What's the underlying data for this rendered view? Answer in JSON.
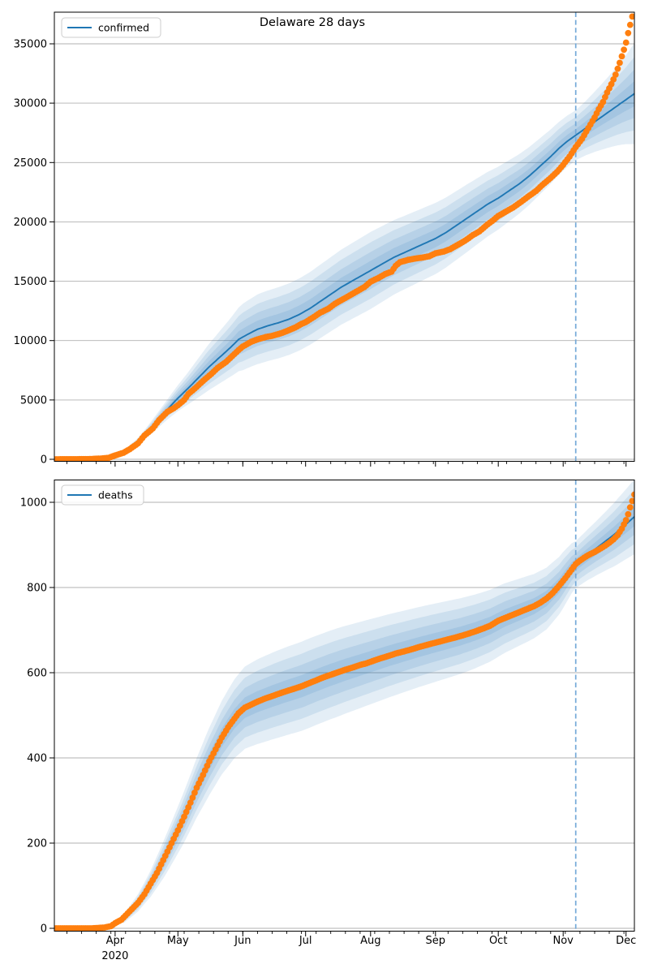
{
  "figure": {
    "title": "Delaware 28 days",
    "year_label": "2020"
  },
  "colors": {
    "forecast_line": "#1f77b4",
    "actual_dots": "#ff7f0e",
    "band_fill": "#1f77b4",
    "band_alpha": 0.12,
    "vline": "#74a9d8",
    "grid": "#b0b0b0",
    "axis": "#000000"
  },
  "x_axis": {
    "day_zero_date": "Mar 1 2020",
    "domain_days": [
      2,
      279
    ],
    "months": [
      {
        "label": "Apr",
        "day": 31
      },
      {
        "label": "May",
        "day": 61
      },
      {
        "label": "Jun",
        "day": 92
      },
      {
        "label": "Jul",
        "day": 122
      },
      {
        "label": "Aug",
        "day": 153
      },
      {
        "label": "Sep",
        "day": 184
      },
      {
        "label": "Oct",
        "day": 214
      },
      {
        "label": "Nov",
        "day": 245
      },
      {
        "label": "Dec",
        "day": 275
      }
    ],
    "year_under_day": 31,
    "minor_tick_every_days": 7,
    "forecast_start_vline_day": 251,
    "forecast_horizon_days": 28
  },
  "chart_data": [
    {
      "type": "line",
      "name": "confirmed",
      "legend": "confirmed",
      "title": "Delaware 28 days",
      "ylim": [
        0,
        37600
      ],
      "yticks": [
        0,
        5000,
        10000,
        15000,
        20000,
        25000,
        30000,
        35000
      ],
      "grid": "horizontal",
      "legend_position": "upper left",
      "actual_points": [
        [
          0,
          2
        ],
        [
          10,
          5
        ],
        [
          18,
          16
        ],
        [
          24,
          60
        ],
        [
          28,
          130
        ],
        [
          31,
          320
        ],
        [
          35,
          550
        ],
        [
          38,
          850
        ],
        [
          42,
          1350
        ],
        [
          45,
          2000
        ],
        [
          49,
          2600
        ],
        [
          52,
          3300
        ],
        [
          56,
          4000
        ],
        [
          59,
          4300
        ],
        [
          61,
          4550
        ],
        [
          64,
          5000
        ],
        [
          66,
          5500
        ],
        [
          70,
          6100
        ],
        [
          73,
          6600
        ],
        [
          77,
          7200
        ],
        [
          80,
          7700
        ],
        [
          84,
          8200
        ],
        [
          87,
          8700
        ],
        [
          90,
          9200
        ],
        [
          92,
          9500
        ],
        [
          96,
          9900
        ],
        [
          99,
          10100
        ],
        [
          103,
          10300
        ],
        [
          106,
          10400
        ],
        [
          110,
          10600
        ],
        [
          113,
          10800
        ],
        [
          117,
          11100
        ],
        [
          120,
          11400
        ],
        [
          122,
          11550
        ],
        [
          126,
          12000
        ],
        [
          129,
          12350
        ],
        [
          133,
          12700
        ],
        [
          136,
          13100
        ],
        [
          140,
          13500
        ],
        [
          143,
          13800
        ],
        [
          147,
          14200
        ],
        [
          150,
          14500
        ],
        [
          153,
          14950
        ],
        [
          157,
          15300
        ],
        [
          160,
          15600
        ],
        [
          163,
          15800
        ],
        [
          165,
          16300
        ],
        [
          167,
          16600
        ],
        [
          171,
          16800
        ],
        [
          174,
          16900
        ],
        [
          178,
          17000
        ],
        [
          181,
          17100
        ],
        [
          184,
          17350
        ],
        [
          188,
          17500
        ],
        [
          191,
          17700
        ],
        [
          195,
          18100
        ],
        [
          198,
          18400
        ],
        [
          202,
          18900
        ],
        [
          205,
          19200
        ],
        [
          209,
          19800
        ],
        [
          212,
          20200
        ],
        [
          214,
          20500
        ],
        [
          218,
          20900
        ],
        [
          221,
          21200
        ],
        [
          225,
          21700
        ],
        [
          228,
          22100
        ],
        [
          232,
          22600
        ],
        [
          235,
          23100
        ],
        [
          239,
          23700
        ],
        [
          242,
          24200
        ],
        [
          245,
          24800
        ],
        [
          248,
          25500
        ],
        [
          251,
          26300
        ],
        [
          254,
          27000
        ],
        [
          256,
          27600
        ],
        [
          258,
          28200
        ],
        [
          260,
          28800
        ],
        [
          262,
          29500
        ],
        [
          264,
          30100
        ],
        [
          266,
          30900
        ],
        [
          268,
          31600
        ],
        [
          270,
          32400
        ],
        [
          272,
          33400
        ],
        [
          274,
          34500
        ],
        [
          275,
          35100
        ],
        [
          276,
          35900
        ],
        [
          277,
          36600
        ],
        [
          278,
          37300
        ]
      ],
      "forecast_points": [
        [
          35,
          600
        ],
        [
          42,
          1500
        ],
        [
          49,
          2800
        ],
        [
          56,
          4200
        ],
        [
          61,
          5150
        ],
        [
          66,
          6000
        ],
        [
          71,
          6900
        ],
        [
          76,
          7800
        ],
        [
          81,
          8600
        ],
        [
          86,
          9400
        ],
        [
          90,
          10100
        ],
        [
          94,
          10500
        ],
        [
          99,
          10950
        ],
        [
          104,
          11250
        ],
        [
          109,
          11500
        ],
        [
          114,
          11800
        ],
        [
          119,
          12200
        ],
        [
          124,
          12700
        ],
        [
          129,
          13300
        ],
        [
          134,
          13900
        ],
        [
          139,
          14500
        ],
        [
          144,
          15000
        ],
        [
          149,
          15500
        ],
        [
          154,
          16000
        ],
        [
          159,
          16500
        ],
        [
          164,
          17000
        ],
        [
          169,
          17400
        ],
        [
          174,
          17800
        ],
        [
          179,
          18200
        ],
        [
          184,
          18600
        ],
        [
          189,
          19100
        ],
        [
          194,
          19700
        ],
        [
          199,
          20300
        ],
        [
          204,
          20900
        ],
        [
          209,
          21500
        ],
        [
          214,
          22000
        ],
        [
          219,
          22600
        ],
        [
          224,
          23200
        ],
        [
          229,
          23900
        ],
        [
          234,
          24700
        ],
        [
          239,
          25500
        ],
        [
          243,
          26200
        ],
        [
          247,
          26800
        ],
        [
          251,
          27300
        ],
        [
          255,
          27800
        ],
        [
          259,
          28300
        ],
        [
          263,
          28800
        ],
        [
          267,
          29300
        ],
        [
          271,
          29800
        ],
        [
          275,
          30300
        ],
        [
          279,
          30800
        ]
      ],
      "band_halfwidth_points": [
        [
          35,
          120
        ],
        [
          45,
          400
        ],
        [
          55,
          800
        ],
        [
          65,
          1300
        ],
        [
          75,
          1900
        ],
        [
          85,
          2400
        ],
        [
          92,
          2800
        ],
        [
          100,
          2950
        ],
        [
          110,
          3000
        ],
        [
          122,
          3050
        ],
        [
          137,
          3150
        ],
        [
          153,
          3250
        ],
        [
          168,
          3100
        ],
        [
          184,
          3000
        ],
        [
          199,
          2850
        ],
        [
          214,
          2650
        ],
        [
          228,
          2450
        ],
        [
          238,
          2300
        ],
        [
          245,
          2200
        ],
        [
          251,
          2100
        ],
        [
          256,
          2300
        ],
        [
          261,
          2600
        ],
        [
          266,
          2950
        ],
        [
          271,
          3350
        ],
        [
          275,
          3750
        ],
        [
          279,
          4250
        ]
      ]
    },
    {
      "type": "line",
      "name": "deaths",
      "legend": "deaths",
      "ylim": [
        0,
        1052
      ],
      "yticks": [
        0,
        200,
        400,
        600,
        800,
        1000
      ],
      "grid": "horizontal",
      "legend_position": "upper left",
      "actual_points": [
        [
          0,
          0
        ],
        [
          20,
          0
        ],
        [
          26,
          2
        ],
        [
          29,
          5
        ],
        [
          31,
          12
        ],
        [
          34,
          20
        ],
        [
          38,
          40
        ],
        [
          42,
          60
        ],
        [
          45,
          80
        ],
        [
          48,
          105
        ],
        [
          51,
          130
        ],
        [
          54,
          160
        ],
        [
          57,
          190
        ],
        [
          59,
          210
        ],
        [
          61,
          230
        ],
        [
          64,
          262
        ],
        [
          67,
          295
        ],
        [
          70,
          330
        ],
        [
          73,
          360
        ],
        [
          76,
          392
        ],
        [
          79,
          420
        ],
        [
          82,
          448
        ],
        [
          85,
          472
        ],
        [
          88,
          492
        ],
        [
          90,
          505
        ],
        [
          93,
          518
        ],
        [
          96,
          525
        ],
        [
          99,
          532
        ],
        [
          103,
          540
        ],
        [
          106,
          545
        ],
        [
          110,
          552
        ],
        [
          113,
          557
        ],
        [
          117,
          563
        ],
        [
          120,
          568
        ],
        [
          124,
          576
        ],
        [
          127,
          582
        ],
        [
          131,
          590
        ],
        [
          134,
          595
        ],
        [
          138,
          602
        ],
        [
          141,
          607
        ],
        [
          145,
          613
        ],
        [
          148,
          618
        ],
        [
          151,
          622
        ],
        [
          155,
          629
        ],
        [
          158,
          634
        ],
        [
          162,
          640
        ],
        [
          165,
          645
        ],
        [
          169,
          650
        ],
        [
          172,
          654
        ],
        [
          176,
          660
        ],
        [
          179,
          664
        ],
        [
          182,
          668
        ],
        [
          186,
          673
        ],
        [
          189,
          677
        ],
        [
          193,
          682
        ],
        [
          196,
          686
        ],
        [
          200,
          692
        ],
        [
          203,
          697
        ],
        [
          207,
          704
        ],
        [
          210,
          710
        ],
        [
          214,
          722
        ],
        [
          217,
          728
        ],
        [
          221,
          736
        ],
        [
          224,
          742
        ],
        [
          228,
          750
        ],
        [
          231,
          756
        ],
        [
          234,
          764
        ],
        [
          237,
          774
        ],
        [
          240,
          787
        ],
        [
          243,
          804
        ],
        [
          246,
          822
        ],
        [
          249,
          842
        ],
        [
          251,
          855
        ],
        [
          253,
          863
        ],
        [
          255,
          870
        ],
        [
          257,
          876
        ],
        [
          259,
          881
        ],
        [
          261,
          886
        ],
        [
          263,
          892
        ],
        [
          265,
          898
        ],
        [
          267,
          905
        ],
        [
          269,
          913
        ],
        [
          271,
          923
        ],
        [
          273,
          938
        ],
        [
          275,
          958
        ],
        [
          276,
          972
        ],
        [
          277,
          988
        ],
        [
          278,
          1003
        ],
        [
          279,
          1018
        ]
      ],
      "forecast_points": [
        [
          35,
          22
        ],
        [
          42,
          60
        ],
        [
          48,
          105
        ],
        [
          54,
          160
        ],
        [
          59,
          210
        ],
        [
          64,
          262
        ],
        [
          70,
          330
        ],
        [
          76,
          392
        ],
        [
          82,
          448
        ],
        [
          88,
          492
        ],
        [
          93,
          518
        ],
        [
          99,
          532
        ],
        [
          106,
          545
        ],
        [
          113,
          557
        ],
        [
          120,
          568
        ],
        [
          127,
          582
        ],
        [
          134,
          595
        ],
        [
          141,
          607
        ],
        [
          148,
          618
        ],
        [
          155,
          629
        ],
        [
          162,
          640
        ],
        [
          169,
          650
        ],
        [
          176,
          660
        ],
        [
          182,
          668
        ],
        [
          189,
          677
        ],
        [
          196,
          686
        ],
        [
          203,
          697
        ],
        [
          210,
          710
        ],
        [
          217,
          728
        ],
        [
          224,
          742
        ],
        [
          231,
          756
        ],
        [
          237,
          774
        ],
        [
          243,
          804
        ],
        [
          249,
          845
        ],
        [
          253,
          862
        ],
        [
          257,
          878
        ],
        [
          261,
          893
        ],
        [
          265,
          908
        ],
        [
          269,
          923
        ],
        [
          273,
          940
        ],
        [
          276,
          953
        ],
        [
          279,
          966
        ]
      ],
      "band_halfwidth_points": [
        [
          35,
          10
        ],
        [
          45,
          25
        ],
        [
          55,
          45
        ],
        [
          65,
          62
        ],
        [
          75,
          78
        ],
        [
          85,
          90
        ],
        [
          92,
          96
        ],
        [
          100,
          100
        ],
        [
          110,
          103
        ],
        [
          122,
          105
        ],
        [
          137,
          104
        ],
        [
          153,
          100
        ],
        [
          168,
          96
        ],
        [
          184,
          92
        ],
        [
          199,
          88
        ],
        [
          214,
          83
        ],
        [
          228,
          77
        ],
        [
          238,
          72
        ],
        [
          245,
          66
        ],
        [
          251,
          55
        ],
        [
          256,
          59
        ],
        [
          261,
          64
        ],
        [
          266,
          70
        ],
        [
          271,
          77
        ],
        [
          275,
          82
        ],
        [
          279,
          88
        ]
      ]
    }
  ]
}
